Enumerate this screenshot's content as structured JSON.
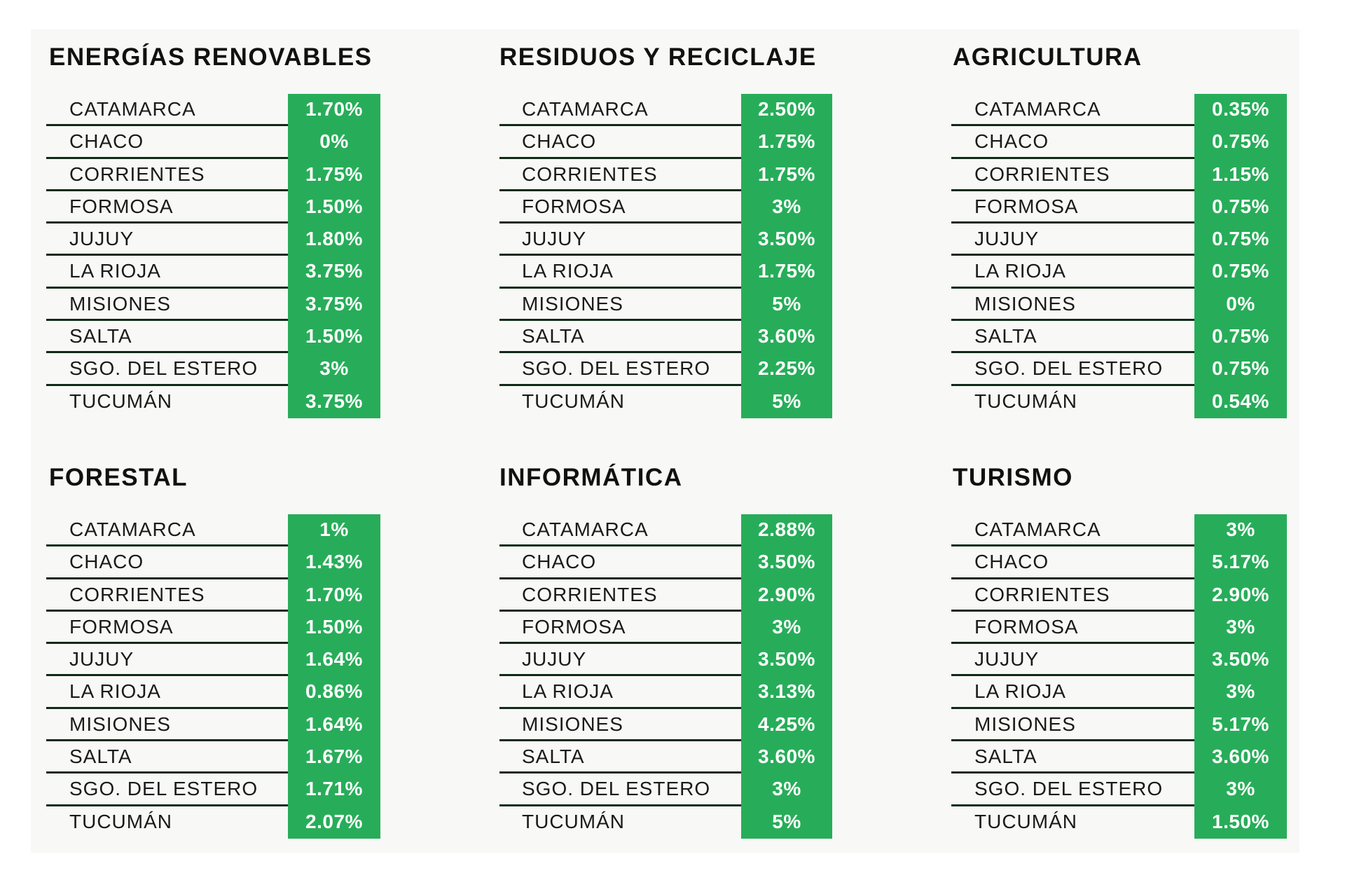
{
  "sectors": [
    {
      "title": "ENERGÍAS RENOVABLES",
      "rows": [
        {
          "province": "CATAMARCA",
          "value": "1.70%"
        },
        {
          "province": "CHACO",
          "value": "0%"
        },
        {
          "province": "CORRIENTES",
          "value": "1.75%"
        },
        {
          "province": "FORMOSA",
          "value": "1.50%"
        },
        {
          "province": "JUJUY",
          "value": "1.80%"
        },
        {
          "province": "LA RIOJA",
          "value": "3.75%"
        },
        {
          "province": "MISIONES",
          "value": "3.75%"
        },
        {
          "province": "SALTA",
          "value": "1.50%"
        },
        {
          "province": "SGO. DEL ESTERO",
          "value": "3%"
        },
        {
          "province": "TUCUMÁN",
          "value": "3.75%"
        }
      ]
    },
    {
      "title": "RESIDUOS Y RECICLAJE",
      "rows": [
        {
          "province": "CATAMARCA",
          "value": "2.50%"
        },
        {
          "province": "CHACO",
          "value": "1.75%"
        },
        {
          "province": "CORRIENTES",
          "value": "1.75%"
        },
        {
          "province": "FORMOSA",
          "value": "3%"
        },
        {
          "province": "JUJUY",
          "value": "3.50%"
        },
        {
          "province": "LA RIOJA",
          "value": "1.75%"
        },
        {
          "province": "MISIONES",
          "value": "5%"
        },
        {
          "province": "SALTA",
          "value": "3.60%"
        },
        {
          "province": "SGO. DEL ESTERO",
          "value": "2.25%"
        },
        {
          "province": "TUCUMÁN",
          "value": "5%"
        }
      ]
    },
    {
      "title": "AGRICULTURA",
      "rows": [
        {
          "province": "CATAMARCA",
          "value": "0.35%"
        },
        {
          "province": "CHACO",
          "value": "0.75%"
        },
        {
          "province": "CORRIENTES",
          "value": "1.15%"
        },
        {
          "province": "FORMOSA",
          "value": "0.75%"
        },
        {
          "province": "JUJUY",
          "value": "0.75%"
        },
        {
          "province": "LA RIOJA",
          "value": "0.75%"
        },
        {
          "province": "MISIONES",
          "value": "0%"
        },
        {
          "province": "SALTA",
          "value": "0.75%"
        },
        {
          "province": "SGO. DEL ESTERO",
          "value": "0.75%"
        },
        {
          "province": "TUCUMÁN",
          "value": "0.54%"
        }
      ]
    },
    {
      "title": "FORESTAL",
      "rows": [
        {
          "province": "CATAMARCA",
          "value": "1%"
        },
        {
          "province": "CHACO",
          "value": "1.43%"
        },
        {
          "province": "CORRIENTES",
          "value": "1.70%"
        },
        {
          "province": "FORMOSA",
          "value": "1.50%"
        },
        {
          "province": "JUJUY",
          "value": "1.64%"
        },
        {
          "province": "LA RIOJA",
          "value": "0.86%"
        },
        {
          "province": "MISIONES",
          "value": "1.64%"
        },
        {
          "province": "SALTA",
          "value": "1.67%"
        },
        {
          "province": "SGO. DEL ESTERO",
          "value": "1.71%"
        },
        {
          "province": "TUCUMÁN",
          "value": "2.07%"
        }
      ]
    },
    {
      "title": "INFORMÁTICA",
      "rows": [
        {
          "province": "CATAMARCA",
          "value": "2.88%"
        },
        {
          "province": "CHACO",
          "value": "3.50%"
        },
        {
          "province": "CORRIENTES",
          "value": "2.90%"
        },
        {
          "province": "FORMOSA",
          "value": "3%"
        },
        {
          "province": "JUJUY",
          "value": "3.50%"
        },
        {
          "province": "LA RIOJA",
          "value": "3.13%"
        },
        {
          "province": "MISIONES",
          "value": "4.25%"
        },
        {
          "province": "SALTA",
          "value": "3.60%"
        },
        {
          "province": "SGO. DEL ESTERO",
          "value": "3%"
        },
        {
          "province": "TUCUMÁN",
          "value": "5%"
        }
      ]
    },
    {
      "title": "TURISMO",
      "rows": [
        {
          "province": "CATAMARCA",
          "value": "3%"
        },
        {
          "province": "CHACO",
          "value": "5.17%"
        },
        {
          "province": "CORRIENTES",
          "value": "2.90%"
        },
        {
          "province": "FORMOSA",
          "value": "3%"
        },
        {
          "province": "JUJUY",
          "value": "3.50%"
        },
        {
          "province": "LA RIOJA",
          "value": "3%"
        },
        {
          "province": "MISIONES",
          "value": "5.17%"
        },
        {
          "province": "SALTA",
          "value": "3.60%"
        },
        {
          "province": "SGO. DEL ESTERO",
          "value": "3%"
        },
        {
          "province": "TUCUMÁN",
          "value": "1.50%"
        }
      ]
    }
  ],
  "colors": {
    "value_bg": "#27ad59",
    "value_text": "#ffffff",
    "row_rule": "#0f2a17",
    "panel_bg": "#f8f8f6"
  }
}
